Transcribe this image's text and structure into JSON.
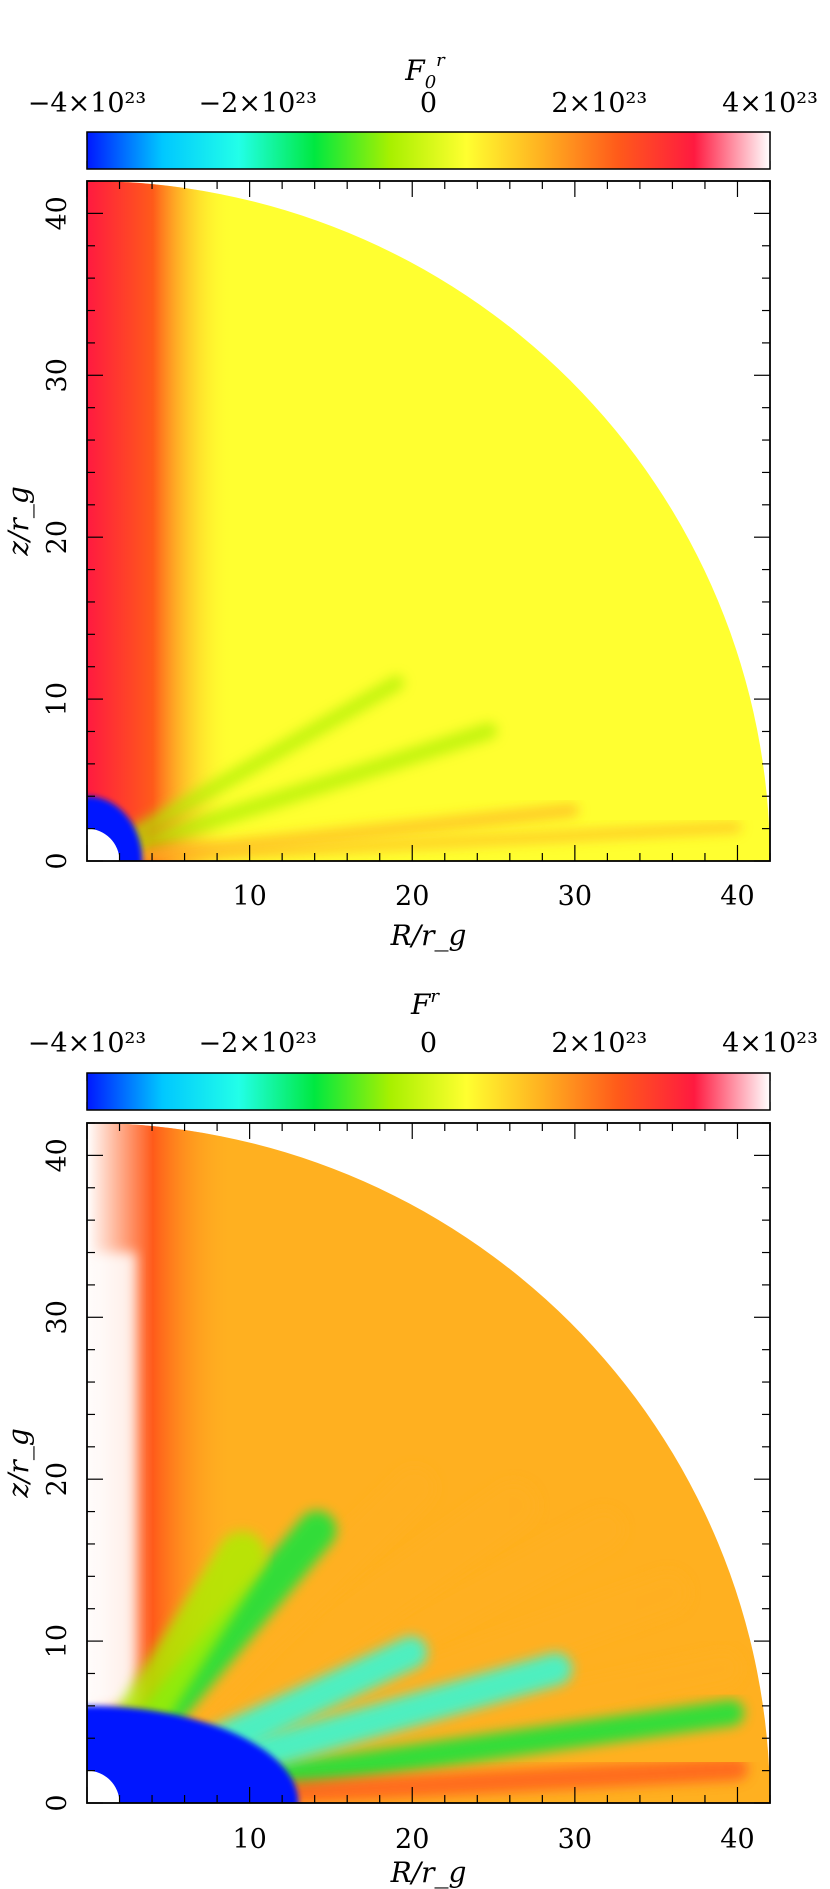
{
  "colors": {
    "scale": [
      "#0018ff",
      "#00c8ff",
      "#22ffe8",
      "#00e840",
      "#a8f000",
      "#ffff30",
      "#ffb020",
      "#ff5a1a",
      "#ff1a40",
      "#ffffff"
    ],
    "background": "#ffffff",
    "frame": "#000000"
  },
  "chart_data": [
    {
      "type": "heatmap",
      "title": "F_0^r",
      "colorbar": {
        "title": "F_0^r",
        "range": [
          -4e+23,
          4e+23
        ],
        "tick_labels": [
          "−4×10²³",
          "−2×10²³",
          "0",
          "2×10²³",
          "4×10²³"
        ],
        "tick_values": [
          -4e+23,
          -2e+23,
          0,
          2e+23,
          4e+23
        ],
        "placement": "top"
      },
      "xlabel": "R/r_g",
      "ylabel": "z/r_g",
      "xlim": [
        0,
        42
      ],
      "ylim": [
        0,
        42
      ],
      "x_tick_labels": [
        "10",
        "20",
        "30",
        "40"
      ],
      "y_tick_labels": [
        "0",
        "10",
        "20",
        "30",
        "40"
      ],
      "features": {
        "domain": "quarter-disk of radius 42 r_g",
        "inner_hole_radius": 2,
        "background_value_fraction": 0.6,
        "axis_jet_value_fraction": 0.92,
        "inner_region_value_fraction": 0.02
      }
    },
    {
      "type": "heatmap",
      "title": "F^r",
      "colorbar": {
        "title": "F^r",
        "range": [
          -4e+23,
          4e+23
        ],
        "tick_labels": [
          "−4×10²³",
          "−2×10²³",
          "0",
          "2×10²³",
          "4×10²³"
        ],
        "tick_values": [
          -4e+23,
          -2e+23,
          0,
          2e+23,
          4e+23
        ],
        "placement": "top"
      },
      "xlabel": "R/r_g",
      "ylabel": "z/r_g",
      "xlim": [
        0,
        42
      ],
      "ylim": [
        0,
        42
      ],
      "x_tick_labels": [
        "10",
        "20",
        "30",
        "40"
      ],
      "y_tick_labels": [
        "0",
        "10",
        "20",
        "30",
        "40"
      ],
      "features": {
        "domain": "quarter-disk of radius 42 r_g",
        "inner_hole_radius": 2,
        "background_value_fraction": 0.62,
        "axis_jet_value_fraction": 0.98,
        "inner_region_value_fraction": 0.02
      }
    }
  ]
}
